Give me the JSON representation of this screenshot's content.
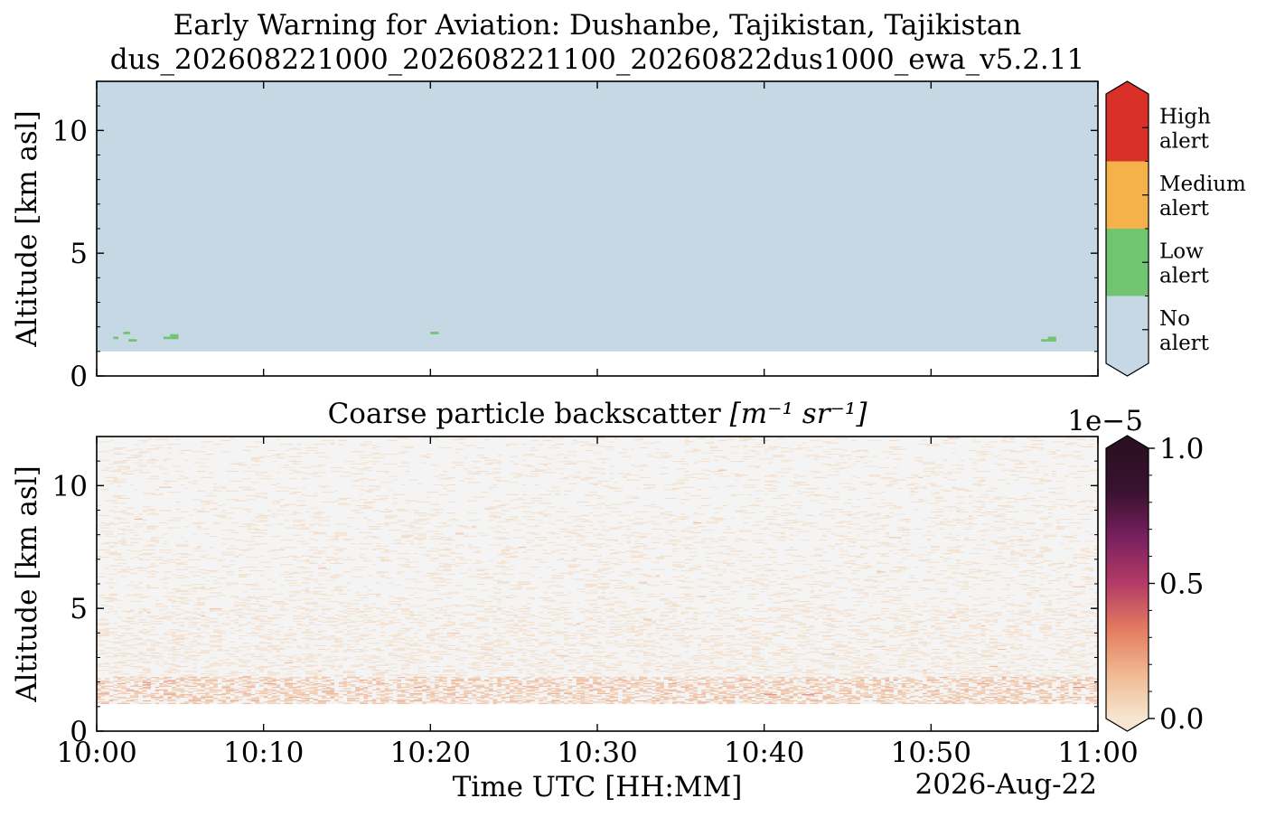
{
  "chart_data": [
    {
      "type": "heatmap",
      "title": "Early Warning for Aviation: Dushanbe, Tajikistan, Tajikistan",
      "subtitle": "dus_202608221000_202608221100_20260822dus1000_ewa_v5.2.11",
      "ylabel": "Altitude [km asl]",
      "ylim": [
        0,
        12
      ],
      "yticks": [
        "0",
        "5",
        "10"
      ],
      "xlim_minutes": [
        0,
        60
      ],
      "colorbar": {
        "type": "categorical",
        "extend": "both",
        "categories": [
          {
            "label": [
              "No",
              "alert"
            ],
            "color": "#c5d8e3"
          },
          {
            "label": [
              "Low",
              "alert"
            ],
            "color": "#70c472"
          },
          {
            "label": [
              "Medium",
              "alert"
            ],
            "color": "#f6b24a"
          },
          {
            "label": [
              "High",
              "alert"
            ],
            "color": "#d93127"
          }
        ]
      },
      "background_region": {
        "alert": "No alert",
        "altitude_km": [
          1.0,
          12.0
        ],
        "time": [
          "10:00",
          "11:00"
        ]
      },
      "alert_patches": [
        {
          "alert": "Low alert",
          "time_min": [
            1.0,
            1.3
          ],
          "altitude_km": [
            1.5,
            1.6
          ]
        },
        {
          "alert": "Low alert",
          "time_min": [
            1.6,
            2.0
          ],
          "altitude_km": [
            1.7,
            1.8
          ]
        },
        {
          "alert": "Low alert",
          "time_min": [
            1.9,
            2.4
          ],
          "altitude_km": [
            1.4,
            1.5
          ]
        },
        {
          "alert": "Low alert",
          "time_min": [
            4.0,
            4.4
          ],
          "altitude_km": [
            1.5,
            1.6
          ]
        },
        {
          "alert": "Low alert",
          "time_min": [
            4.4,
            4.9
          ],
          "altitude_km": [
            1.5,
            1.7
          ]
        },
        {
          "alert": "Low alert",
          "time_min": [
            20.0,
            20.5
          ],
          "altitude_km": [
            1.7,
            1.8
          ]
        },
        {
          "alert": "Low alert",
          "time_min": [
            56.6,
            57.0
          ],
          "altitude_km": [
            1.4,
            1.5
          ]
        },
        {
          "alert": "Low alert",
          "time_min": [
            57.0,
            57.5
          ],
          "altitude_km": [
            1.4,
            1.6
          ]
        }
      ]
    },
    {
      "type": "heatmap",
      "title": "Coarse particle backscatter",
      "title_units": "[m⁻¹ sr⁻¹]",
      "ylabel": "Altitude [km asl]",
      "xlabel": "Time UTC [HH:MM]",
      "date_label": "2026-Aug-22",
      "ylim": [
        0,
        12
      ],
      "yticks": [
        "0",
        "5",
        "10"
      ],
      "xticks": [
        "10:00",
        "10:10",
        "10:20",
        "10:30",
        "10:40",
        "10:50",
        "11:00"
      ],
      "xlim_minutes": [
        0,
        60
      ],
      "colorbar": {
        "type": "continuous",
        "extend": "both",
        "range": [
          0.0,
          1.0
        ],
        "ticks": [
          "0.0",
          "0.5",
          "1.0"
        ],
        "scale_label": "1e−5",
        "colors": [
          "#f7e6cf",
          "#f0b891",
          "#e37a5f",
          "#b43b66",
          "#7a2060",
          "#3b1230",
          "#2a1022"
        ]
      },
      "data_region_altitude_km": [
        1.1,
        12.0
      ],
      "background_value": 0.0,
      "structure": {
        "enhanced_layer_altitude_km": [
          1.1,
          2.2
        ],
        "enhanced_layer_value_approx": 0.15,
        "speckle_altitude_km": [
          2.2,
          12.0
        ],
        "speckle_value_approx": 0.05
      }
    }
  ]
}
